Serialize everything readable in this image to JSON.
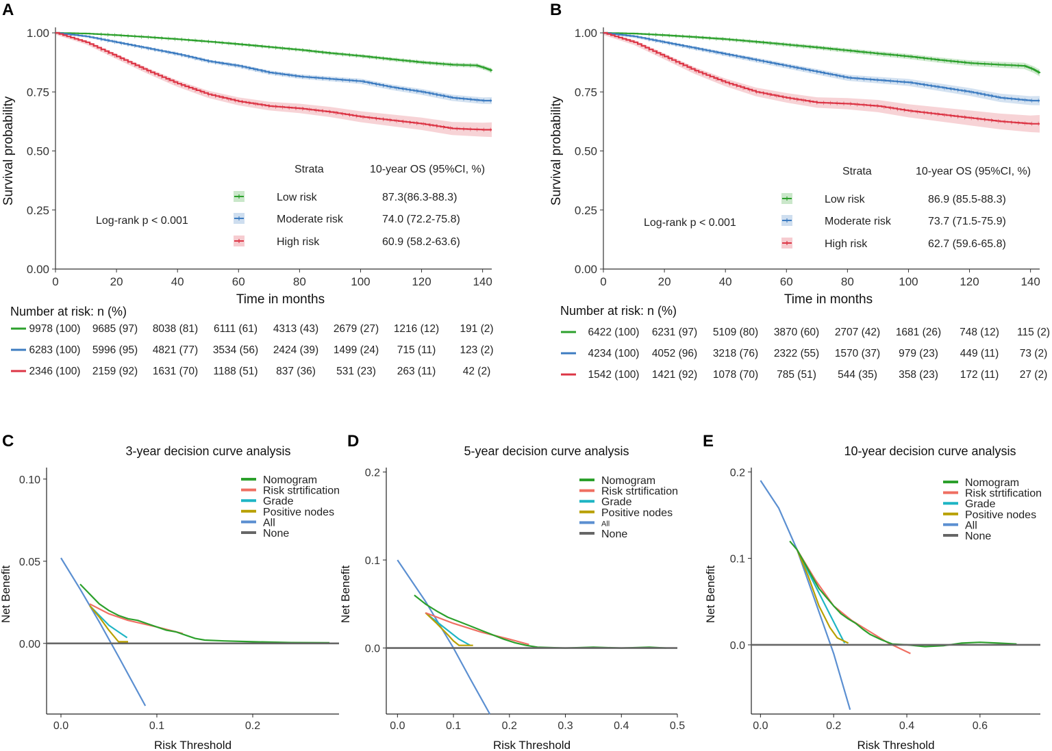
{
  "colors": {
    "green": "#2ca02c",
    "blue": "#3d7cc1",
    "red": "#dc3545",
    "teal": "#1fb5c4",
    "olive": "#b8a000",
    "allblue": "#5b8fd1",
    "gray": "#666666",
    "salmon": "#ef6f62",
    "axis": "#333333"
  },
  "chart_data": [
    {
      "panel": "A",
      "type": "line",
      "xlabel": "Time in months",
      "ylabel": "Survival probability",
      "xlim": [
        0,
        143
      ],
      "ylim": [
        0,
        1
      ],
      "xticks": [
        "0",
        "20",
        "40",
        "60",
        "80",
        "100",
        "120",
        "140"
      ],
      "yticks": [
        "0.00",
        "0.25",
        "0.50",
        "0.75",
        "1.00"
      ],
      "logrank": "Log-rank p < 0.001",
      "legend_header": {
        "strata": "Strata",
        "os": "10-year OS (95%CI, %)"
      },
      "series": [
        {
          "name": "Low risk",
          "color": "green",
          "os": "87.3(86.3-88.3)",
          "x": [
            0,
            10,
            20,
            30,
            40,
            50,
            60,
            70,
            80,
            90,
            100,
            110,
            120,
            130,
            138,
            141,
            143
          ],
          "y": [
            1,
            0.997,
            0.99,
            0.982,
            0.973,
            0.963,
            0.952,
            0.94,
            0.928,
            0.914,
            0.902,
            0.888,
            0.875,
            0.865,
            0.862,
            0.85,
            0.84
          ],
          "band": 0.008
        },
        {
          "name": "Moderate risk",
          "color": "blue",
          "os": "74.0 (72.2-75.8)",
          "x": [
            0,
            10,
            20,
            30,
            40,
            50,
            60,
            70,
            80,
            90,
            100,
            110,
            120,
            130,
            140,
            143
          ],
          "y": [
            1,
            0.985,
            0.96,
            0.935,
            0.91,
            0.88,
            0.86,
            0.832,
            0.815,
            0.805,
            0.795,
            0.77,
            0.75,
            0.725,
            0.713,
            0.713
          ],
          "band": 0.012
        },
        {
          "name": "High risk",
          "color": "red",
          "os": "60.9 (58.2-63.6)",
          "x": [
            0,
            10,
            20,
            30,
            40,
            50,
            60,
            70,
            80,
            90,
            100,
            110,
            120,
            130,
            140,
            143
          ],
          "y": [
            1,
            0.96,
            0.9,
            0.84,
            0.785,
            0.74,
            0.71,
            0.69,
            0.68,
            0.665,
            0.645,
            0.63,
            0.615,
            0.595,
            0.59,
            0.59
          ],
          "band": 0.025
        }
      ],
      "risk_table": {
        "title": "Number at risk: n (%)",
        "rows": [
          [
            "9978 (100)",
            "9685 (97)",
            "8038 (81)",
            "6111 (61)",
            "4313 (43)",
            "2679 (27)",
            "1216 (12)",
            "191 (2)"
          ],
          [
            "6283 (100)",
            "5996 (95)",
            "4821 (77)",
            "3534 (56)",
            "2424 (39)",
            "1499 (24)",
            "715 (11)",
            "123 (2)"
          ],
          [
            "2346 (100)",
            "2159 (92)",
            "1631 (70)",
            "1188 (51)",
            "837 (36)",
            "531 (23)",
            "263 (11)",
            "42 (2)"
          ]
        ]
      }
    },
    {
      "panel": "B",
      "type": "line",
      "xlabel": "Time in months",
      "ylabel": "Survival probability",
      "xlim": [
        0,
        143
      ],
      "ylim": [
        0,
        1
      ],
      "xticks": [
        "0",
        "20",
        "40",
        "60",
        "80",
        "100",
        "120",
        "140"
      ],
      "yticks": [
        "0.00",
        "0.25",
        "0.50",
        "0.75",
        "1.00"
      ],
      "logrank": "Log-rank p < 0.001",
      "legend_header": {
        "strata": "Strata",
        "os": "10-year OS (95%CI, %)"
      },
      "series": [
        {
          "name": "Low risk",
          "color": "green",
          "os": "86.9 (85.5-88.3)",
          "x": [
            0,
            10,
            20,
            30,
            40,
            50,
            60,
            70,
            80,
            90,
            100,
            110,
            120,
            130,
            138,
            141,
            143
          ],
          "y": [
            1,
            0.997,
            0.99,
            0.982,
            0.973,
            0.962,
            0.95,
            0.938,
            0.925,
            0.912,
            0.9,
            0.885,
            0.872,
            0.865,
            0.86,
            0.845,
            0.83
          ],
          "band": 0.012
        },
        {
          "name": "Moderate risk",
          "color": "blue",
          "os": "73.7 (71.5-75.9)",
          "x": [
            0,
            10,
            20,
            30,
            40,
            50,
            60,
            70,
            80,
            90,
            100,
            110,
            120,
            130,
            140,
            143
          ],
          "y": [
            1,
            0.985,
            0.96,
            0.935,
            0.91,
            0.885,
            0.86,
            0.835,
            0.81,
            0.8,
            0.79,
            0.77,
            0.75,
            0.725,
            0.713,
            0.713
          ],
          "band": 0.016
        },
        {
          "name": "High risk",
          "color": "red",
          "os": "62.7 (59.6-65.8)",
          "x": [
            0,
            10,
            20,
            30,
            40,
            50,
            60,
            70,
            80,
            90,
            100,
            110,
            120,
            130,
            140,
            143
          ],
          "y": [
            1,
            0.96,
            0.9,
            0.84,
            0.79,
            0.75,
            0.725,
            0.705,
            0.7,
            0.69,
            0.67,
            0.655,
            0.64,
            0.625,
            0.615,
            0.615
          ],
          "band": 0.03
        }
      ],
      "risk_table": {
        "title": "Number at risk: n (%)",
        "rows": [
          [
            "6422 (100)",
            "6231 (97)",
            "5109 (80)",
            "3870 (60)",
            "2707 (42)",
            "1681 (26)",
            "748 (12)",
            "115 (2)"
          ],
          [
            "4234 (100)",
            "4052 (96)",
            "3218 (76)",
            "2322 (55)",
            "1570 (37)",
            "979 (23)",
            "449 (11)",
            "73 (2)"
          ],
          [
            "1542 (100)",
            "1421 (92)",
            "1078 (70)",
            "785 (51)",
            "544 (35)",
            "358 (23)",
            "172 (11)",
            "27 (2)"
          ]
        ]
      }
    },
    {
      "panel": "C",
      "type": "line",
      "title": "3-year decision curve analysis",
      "xlabel": "Risk Threshold",
      "ylabel": "Net Benefit",
      "xlim": [
        -0.015,
        0.29
      ],
      "ylim": [
        -0.043,
        0.107
      ],
      "xticks": [
        {
          "v": 0,
          "l": "0.0"
        },
        {
          "v": 0.1,
          "l": "0.1"
        },
        {
          "v": 0.2,
          "l": "0.2"
        }
      ],
      "yticks": [
        {
          "v": 0,
          "l": "0.00"
        },
        {
          "v": 0.05,
          "l": "0.05"
        },
        {
          "v": 0.1,
          "l": "0.10"
        }
      ],
      "legend": [
        "Nomogram",
        "Risk strtification",
        "Grade",
        "Positive nodes",
        "All",
        "None"
      ],
      "series": [
        {
          "name": "All",
          "color": "allblue",
          "x": [
            0,
            0.02,
            0.04,
            0.06,
            0.088
          ],
          "y": [
            0.052,
            0.033,
            0.013,
            -0.008,
            -0.038
          ]
        },
        {
          "name": "Grade",
          "color": "teal",
          "x": [
            0.03,
            0.04,
            0.05,
            0.06,
            0.069
          ],
          "y": [
            0.023,
            0.017,
            0.011,
            0.007,
            0.0035
          ]
        },
        {
          "name": "Positive nodes",
          "color": "olive",
          "x": [
            0.03,
            0.04,
            0.05,
            0.06,
            0.07
          ],
          "y": [
            0.023,
            0.016,
            0.008,
            0.001,
            0.001
          ]
        },
        {
          "name": "Risk strtification",
          "color": "salmon",
          "x": [
            0.03,
            0.05,
            0.07,
            0.1,
            0.127
          ],
          "y": [
            0.024,
            0.018,
            0.014,
            0.01,
            0.006
          ]
        },
        {
          "name": "Nomogram",
          "color": "green",
          "x": [
            0.02,
            0.03,
            0.04,
            0.05,
            0.06,
            0.07,
            0.08,
            0.09,
            0.1,
            0.11,
            0.12,
            0.13,
            0.14,
            0.15,
            0.17,
            0.2,
            0.24,
            0.28
          ],
          "y": [
            0.036,
            0.03,
            0.024,
            0.02,
            0.017,
            0.015,
            0.014,
            0.012,
            0.01,
            0.008,
            0.007,
            0.005,
            0.003,
            0.002,
            0.0015,
            0.001,
            0.0005,
            0.0004
          ]
        },
        {
          "name": "None",
          "color": "gray",
          "x": [
            -0.015,
            0.29
          ],
          "y": [
            0,
            0
          ]
        }
      ]
    },
    {
      "panel": "D",
      "type": "line",
      "title": "5-year decision curve analysis",
      "xlabel": "Risk Threshold",
      "ylabel": "Net Benefit",
      "xlim": [
        -0.02,
        0.5
      ],
      "ylim": [
        -0.075,
        0.205
      ],
      "xticks": [
        {
          "v": 0,
          "l": "0.0"
        },
        {
          "v": 0.1,
          "l": "0.1"
        },
        {
          "v": 0.2,
          "l": "0.2"
        },
        {
          "v": 0.3,
          "l": "0.3"
        },
        {
          "v": 0.4,
          "l": "0.4"
        },
        {
          "v": 0.5,
          "l": "0.5"
        }
      ],
      "yticks": [
        {
          "v": 0,
          "l": "0.0"
        },
        {
          "v": 0.1,
          "l": "0.1"
        },
        {
          "v": 0.2,
          "l": "0.2"
        }
      ],
      "legend": [
        "Nomogram",
        "Risk strtification",
        "Grade",
        "Positive nodes",
        "All",
        "None"
      ],
      "series": [
        {
          "name": "All",
          "color": "allblue",
          "x": [
            0,
            0.05,
            0.1,
            0.13,
            0.165
          ],
          "y": [
            0.1,
            0.053,
            0.0,
            -0.035,
            -0.075
          ]
        },
        {
          "name": "Grade",
          "color": "teal",
          "x": [
            0.05,
            0.07,
            0.09,
            0.11,
            0.13
          ],
          "y": [
            0.04,
            0.03,
            0.02,
            0.01,
            0.003
          ]
        },
        {
          "name": "Positive nodes",
          "color": "olive",
          "x": [
            0.05,
            0.07,
            0.09,
            0.1,
            0.11,
            0.135
          ],
          "y": [
            0.04,
            0.028,
            0.015,
            0.008,
            0.003,
            0.003
          ]
        },
        {
          "name": "Risk strtification",
          "color": "salmon",
          "x": [
            0.05,
            0.1,
            0.15,
            0.2,
            0.235
          ],
          "y": [
            0.04,
            0.028,
            0.018,
            0.01,
            0.004
          ]
        },
        {
          "name": "Nomogram",
          "color": "green",
          "x": [
            0.03,
            0.05,
            0.07,
            0.09,
            0.11,
            0.13,
            0.15,
            0.17,
            0.19,
            0.21,
            0.23,
            0.25,
            0.3,
            0.35,
            0.4,
            0.45,
            0.48
          ],
          "y": [
            0.06,
            0.05,
            0.042,
            0.035,
            0.03,
            0.025,
            0.02,
            0.015,
            0.01,
            0.006,
            0.003,
            0.001,
            0,
            0.001,
            0,
            0.001,
            0
          ]
        },
        {
          "name": "None",
          "color": "gray",
          "x": [
            -0.02,
            0.5
          ],
          "y": [
            0,
            0
          ]
        }
      ]
    },
    {
      "panel": "E",
      "type": "line",
      "title": "10-year decision curve analysis",
      "xlabel": "Risk Threshold",
      "ylabel": "Net Benefit",
      "xlim": [
        -0.025,
        0.765
      ],
      "ylim": [
        -0.08,
        0.205
      ],
      "xticks": [
        {
          "v": 0,
          "l": "0.0"
        },
        {
          "v": 0.2,
          "l": "0.2"
        },
        {
          "v": 0.4,
          "l": "0.4"
        },
        {
          "v": 0.6,
          "l": "0.6"
        }
      ],
      "yticks": [
        {
          "v": 0,
          "l": "0.0"
        },
        {
          "v": 0.1,
          "l": "0.1"
        },
        {
          "v": 0.2,
          "l": "0.2"
        }
      ],
      "legend": [
        "Nomogram",
        "Risk strtification",
        "Grade",
        "Positive nodes",
        "All",
        "None"
      ],
      "series": [
        {
          "name": "All",
          "color": "allblue",
          "x": [
            0,
            0.05,
            0.1,
            0.15,
            0.2,
            0.245
          ],
          "y": [
            0.19,
            0.158,
            0.11,
            0.05,
            -0.01,
            -0.075
          ]
        },
        {
          "name": "Grade",
          "color": "teal",
          "x": [
            0.1,
            0.13,
            0.16,
            0.19,
            0.22,
            0.23
          ],
          "y": [
            0.11,
            0.085,
            0.06,
            0.035,
            0.01,
            0.002
          ]
        },
        {
          "name": "Positive nodes",
          "color": "olive",
          "x": [
            0.1,
            0.13,
            0.16,
            0.19,
            0.21,
            0.24
          ],
          "y": [
            0.11,
            0.08,
            0.045,
            0.02,
            0.008,
            0.002
          ]
        },
        {
          "name": "Risk strtification",
          "color": "salmon",
          "x": [
            0.1,
            0.15,
            0.2,
            0.25,
            0.3,
            0.35,
            0.41
          ],
          "y": [
            0.11,
            0.075,
            0.045,
            0.028,
            0.015,
            0.002,
            -0.01
          ]
        },
        {
          "name": "Nomogram",
          "color": "green",
          "x": [
            0.08,
            0.1,
            0.12,
            0.14,
            0.16,
            0.18,
            0.2,
            0.22,
            0.24,
            0.26,
            0.28,
            0.3,
            0.33,
            0.36,
            0.4,
            0.45,
            0.5,
            0.55,
            0.6,
            0.65,
            0.7
          ],
          "y": [
            0.12,
            0.11,
            0.095,
            0.08,
            0.065,
            0.055,
            0.045,
            0.036,
            0.03,
            0.025,
            0.018,
            0.012,
            0.006,
            0.001,
            0.0,
            -0.002,
            -0.001,
            0.002,
            0.003,
            0.002,
            0.001
          ]
        },
        {
          "name": "None",
          "color": "gray",
          "x": [
            -0.025,
            0.765
          ],
          "y": [
            0,
            0
          ]
        }
      ]
    }
  ]
}
